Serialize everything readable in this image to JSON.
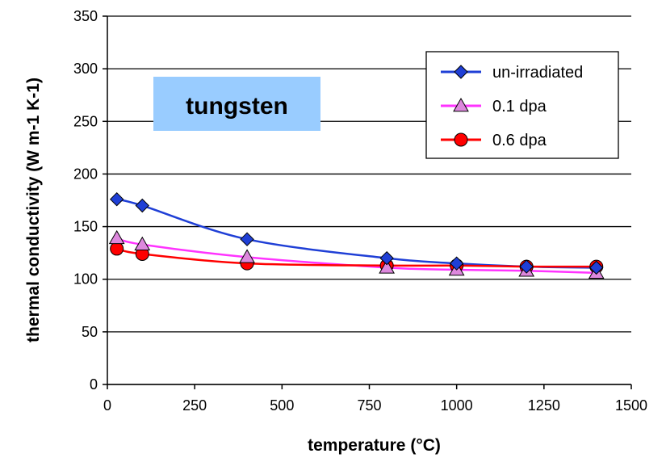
{
  "chart_data": {
    "type": "line",
    "xlabel": "temperature (°C)",
    "ylabel": "thermal conductivity (W m-1 K-1)",
    "xlim": [
      0,
      1500
    ],
    "ylim": [
      0,
      350
    ],
    "x_ticks": [
      "0",
      "250",
      "500",
      "750",
      "1000",
      "1250",
      "1500"
    ],
    "y_ticks": [
      "0",
      "50",
      "100",
      "150",
      "200",
      "250",
      "300",
      "350"
    ],
    "grid": "horizontal",
    "legend_position": "top-right",
    "annotation": {
      "text": "tungsten",
      "fill": "#99ccff"
    },
    "series": [
      {
        "name": "un-irradiated",
        "color": "#1f3fd6",
        "marker": "diamond",
        "marker_fill": "#1f3fd6",
        "x": [
          27,
          100,
          400,
          800,
          1000,
          1200,
          1400
        ],
        "y": [
          176,
          170,
          138,
          120,
          115,
          112,
          111
        ]
      },
      {
        "name": "0.1 dpa",
        "color": "#ff33ff",
        "marker": "triangle",
        "marker_fill": "#dd88dd",
        "x": [
          27,
          100,
          400,
          800,
          1000,
          1200,
          1400
        ],
        "y": [
          139,
          133,
          121,
          111,
          109,
          108,
          106
        ]
      },
      {
        "name": "0.6 dpa",
        "color": "#ff0000",
        "marker": "circle",
        "marker_fill": "#ff0000",
        "x": [
          27,
          100,
          400,
          800,
          1000,
          1200,
          1400
        ],
        "y": [
          129,
          124,
          115,
          113,
          113,
          112,
          112
        ]
      }
    ]
  }
}
